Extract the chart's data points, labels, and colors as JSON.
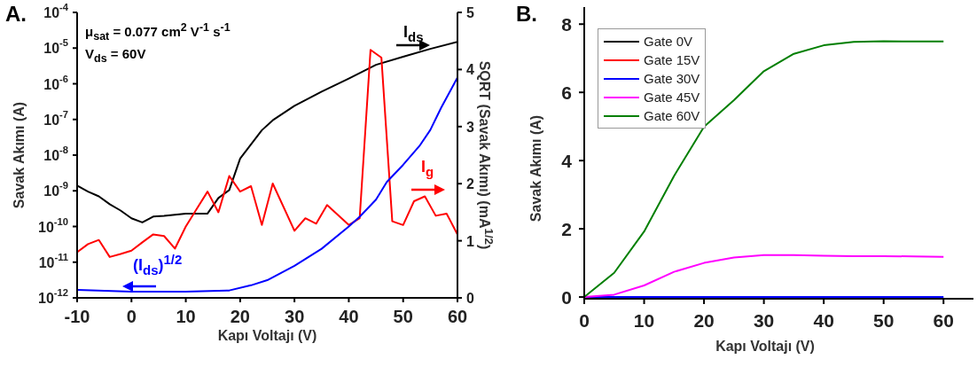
{
  "chart_data": [
    {
      "type": "line",
      "title": "A.",
      "xlabel": "Kapı Voltajı (V)",
      "ylabel": "Savak Akımı (A)",
      "y2label": "SQRT (Savak Akımı) (mA$^{1/2}$)",
      "log": "y",
      "xlim": [
        -10,
        60
      ],
      "xticks": [
        -10,
        0,
        10,
        20,
        30,
        40,
        50,
        60
      ],
      "ylim": [
        1e-12,
        0.0001
      ],
      "yticks": [
        {
          "value": 1e-12,
          "label": "10$^{-12}$"
        },
        {
          "value": 1e-11,
          "label": "10$^{-11}$"
        },
        {
          "value": 1e-10,
          "label": "10$^{-10}$"
        },
        {
          "value": 1e-09,
          "label": "10$^{-9}$"
        },
        {
          "value": 1e-08,
          "label": "10$^{-8}$"
        },
        {
          "value": 1e-07,
          "label": "10$^{-7}$"
        },
        {
          "value": 1e-06,
          "label": "10$^{-6}$"
        },
        {
          "value": 1e-05,
          "label": "10$^{-5}$"
        },
        {
          "value": 0.0001,
          "label": "10$^{-4}$"
        }
      ],
      "y2lim": [
        0,
        5
      ],
      "y2ticks": [
        0,
        1,
        2,
        3,
        4,
        5
      ],
      "annotations": [
        "μ$_{sat}$ = 0.077 cm$^{2}$ V$^{-1}$ s$^{-1}$",
        "V$_{ds}$ = 60V"
      ],
      "series": [
        {
          "name": "I$_{ds}$",
          "color": "#000000",
          "x": [
            -10,
            -8,
            -6,
            -4,
            -2,
            0,
            2,
            4,
            6,
            10,
            14,
            16,
            18,
            20,
            22,
            24,
            26,
            30,
            35,
            40,
            45,
            50,
            55,
            60
          ],
          "values": [
            1.4e-09,
            9.5e-10,
            7e-10,
            4.2e-10,
            2.8e-10,
            1.7e-10,
            1.3e-10,
            1.9e-10,
            2e-10,
            2.3e-10,
            2.3e-10,
            6.3e-10,
            1.05e-09,
            8e-09,
            2e-08,
            5e-08,
            9.5e-08,
            2.4e-07,
            6e-07,
            1.4e-06,
            3.4e-06,
            5.7e-06,
            9.5e-06,
            1.5e-05
          ]
        },
        {
          "name": "I$_{g}$",
          "color": "#ff0000",
          "x": [
            -10,
            -8,
            -6,
            -4,
            -2,
            0,
            2,
            4,
            6,
            8,
            10,
            12,
            14,
            16,
            18,
            20,
            22,
            24,
            26,
            30,
            32,
            34,
            36,
            40,
            42,
            44,
            46,
            48,
            50,
            52,
            54,
            56,
            58,
            60
          ],
          "values": [
            1.9e-11,
            3.2e-11,
            4.2e-11,
            1.4e-11,
            1.7e-11,
            2.1e-11,
            3.6e-11,
            6e-11,
            5.4e-11,
            2.4e-11,
            1e-10,
            3.1e-10,
            9.5e-10,
            2.5e-10,
            2.6e-09,
            9.5e-10,
            1.35e-09,
            1.1e-10,
            1.6e-09,
            7.6e-11,
            1.7e-10,
            1.2e-10,
            4e-10,
            1.1e-10,
            1.7e-10,
            8.9e-06,
            5.4e-06,
            1.4e-10,
            1.1e-10,
            5.1e-10,
            7e-10,
            2e-10,
            2.3e-10,
            6e-11
          ]
        },
        {
          "name": "(I$_{ds}$)$^{1/2}$",
          "color": "#0000ff",
          "axis": "y2",
          "x": [
            -10,
            0,
            10,
            18,
            22,
            25,
            30,
            35,
            40,
            42,
            45,
            47,
            50,
            53,
            55,
            57,
            60
          ],
          "values": [
            0.14,
            0.11,
            0.11,
            0.13,
            0.22,
            0.31,
            0.56,
            0.86,
            1.25,
            1.42,
            1.72,
            2.03,
            2.33,
            2.66,
            2.94,
            3.33,
            3.86
          ]
        }
      ]
    },
    {
      "type": "line",
      "title": "B.",
      "xlabel": "Kapı Voltajı (V)",
      "ylabel": "Savak Akımı (A)",
      "legend": "top left",
      "xlim": [
        0,
        65
      ],
      "xticks": [
        0,
        10,
        20,
        30,
        40,
        50,
        60
      ],
      "ylim": [
        -0.05,
        8.5
      ],
      "yticks": [
        0,
        2,
        4,
        6,
        8
      ],
      "x": [
        0,
        5,
        10,
        15,
        20,
        25,
        30,
        35,
        40,
        45,
        50,
        55,
        60
      ],
      "series": [
        {
          "name": "Gate 0V",
          "color": "#000000",
          "values": [
            null,
            null,
            null,
            null,
            null,
            null,
            null,
            null,
            null,
            null,
            null,
            null,
            null
          ]
        },
        {
          "name": "Gate 15V",
          "color": "#ff0000",
          "values": [
            null,
            null,
            null,
            null,
            null,
            null,
            null,
            null,
            null,
            null,
            null,
            null,
            null
          ]
        },
        {
          "name": "Gate 30V",
          "color": "#0000ff",
          "values": [
            0,
            0,
            0,
            0,
            0,
            0,
            0,
            0,
            0,
            0,
            0,
            0,
            0
          ]
        },
        {
          "name": "Gate 45V",
          "color": "#ff00ff",
          "values": [
            0,
            0.07,
            0.34,
            0.74,
            1.0,
            1.16,
            1.23,
            1.23,
            1.21,
            1.2,
            1.2,
            1.19,
            1.18
          ]
        },
        {
          "name": "Gate 60V",
          "color": "#007f00",
          "values": [
            0,
            0.71,
            1.92,
            3.55,
            4.99,
            5.77,
            6.62,
            7.13,
            7.38,
            7.48,
            7.5,
            7.49,
            7.49
          ]
        }
      ]
    }
  ]
}
